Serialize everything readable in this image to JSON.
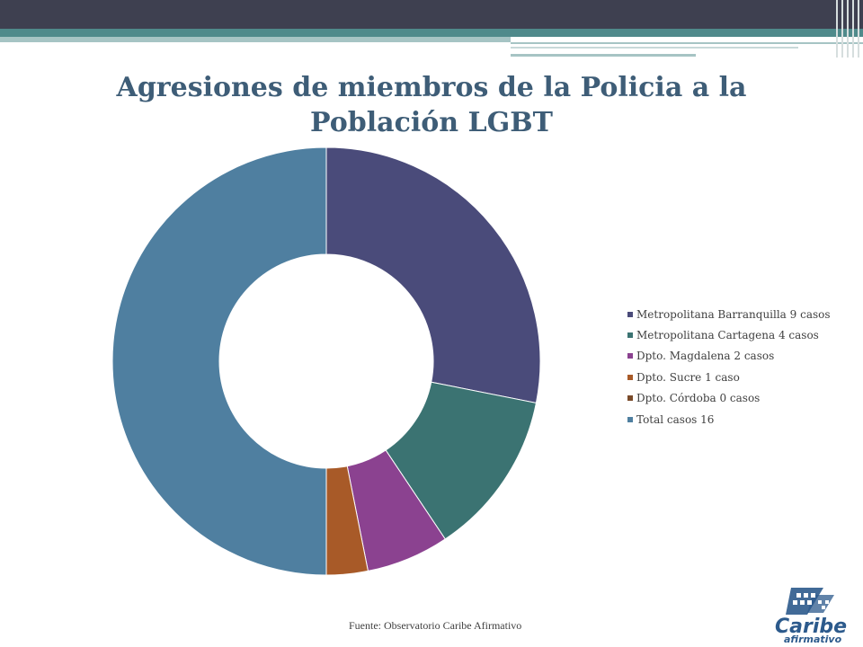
{
  "chart_data": {
    "type": "pie",
    "donut": true,
    "title": "Agresiones de miembros de la Policia a la Población LGBT",
    "series": [
      {
        "name": "Metropolitana Barranquilla 9 casos",
        "value": 9,
        "color": "#4a4b7a"
      },
      {
        "name": "Metropolitana Cartagena 4 casos",
        "value": 4,
        "color": "#3b7372"
      },
      {
        "name": "Dpto. Magdalena 2 casos",
        "value": 2,
        "color": "#8b4290"
      },
      {
        "name": "Dpto. Sucre 1 caso",
        "value": 1,
        "color": "#a85a28"
      },
      {
        "name": "Dpto. Córdoba 0 casos",
        "value": 0,
        "color": "#7a4b2a"
      },
      {
        "name": "Total casos 16",
        "value": 16,
        "color": "#4f7fa0"
      }
    ],
    "legend_position": "right"
  },
  "footer": {
    "source": "Fuente: Observatorio Caribe Afirmativo",
    "logo_text_1": "Caribe",
    "logo_text_2": "afirmativo"
  },
  "theme": {
    "title_color": "#3e5d77",
    "logo_color": "#2c5a8c"
  }
}
